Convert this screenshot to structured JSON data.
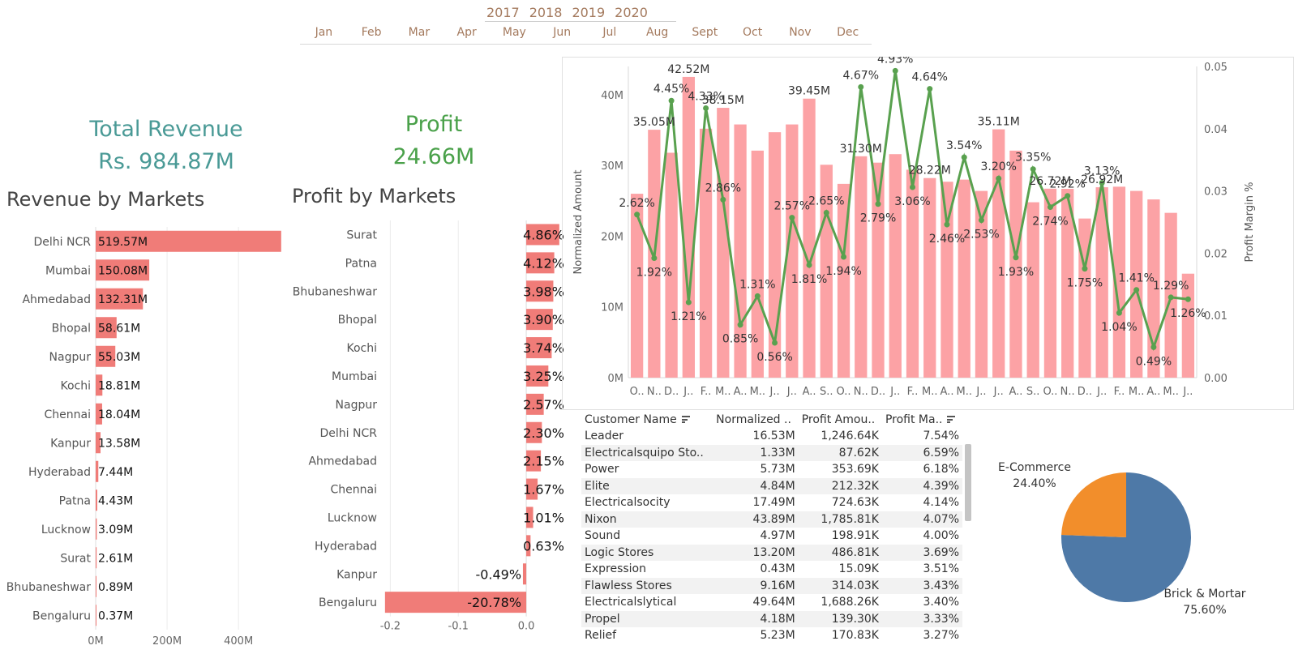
{
  "filters": {
    "years": [
      "2017",
      "2018",
      "2019",
      "2020"
    ],
    "months": [
      "Jan",
      "Feb",
      "Mar",
      "Apr",
      "May",
      "Jun",
      "Jul",
      "Aug",
      "Sept",
      "Oct",
      "Nov",
      "Dec"
    ]
  },
  "kpis": {
    "revenue_title": "Total Revenue",
    "revenue_value": "Rs. 984.87M",
    "profit_title": "Profit",
    "profit_value": "24.66M"
  },
  "colors": {
    "revenue_bar": "#f07c78",
    "profit_bar": "#f07c78",
    "combo_bar": "#fca2a5",
    "combo_line": "#59a14f",
    "pie_brick": "#4e79a7",
    "pie_ecom": "#f28e2b",
    "kpi_revenue": "#4a9a96",
    "kpi_profit": "#4aa14a"
  },
  "chart_data": [
    {
      "id": "revenue_by_markets",
      "type": "bar",
      "orientation": "horizontal",
      "title": "Revenue by Markets",
      "categories": [
        "Delhi NCR",
        "Mumbai",
        "Ahmedabad",
        "Bhopal",
        "Nagpur",
        "Kochi",
        "Chennai",
        "Kanpur",
        "Hyderabad",
        "Patna",
        "Lucknow",
        "Surat",
        "Bhubaneshwar",
        "Bengaluru"
      ],
      "values": [
        519.57,
        150.08,
        132.31,
        58.61,
        55.03,
        18.81,
        18.04,
        13.58,
        7.44,
        4.43,
        3.09,
        2.61,
        0.89,
        0.37
      ],
      "labels": [
        "519.57M",
        "150.08M",
        "132.31M",
        "58.61M",
        "55.03M",
        "18.81M",
        "18.04M",
        "13.58M",
        "7.44M",
        "4.43M",
        "3.09M",
        "2.61M",
        "0.89M",
        "0.37M"
      ],
      "x_ticks": [
        "0M",
        "200M",
        "400M"
      ],
      "xlim": [
        0,
        520
      ]
    },
    {
      "id": "profit_by_markets",
      "type": "bar",
      "orientation": "horizontal",
      "title": "Profit by Markets",
      "categories": [
        "Surat",
        "Patna",
        "Bhubaneshwar",
        "Bhopal",
        "Kochi",
        "Mumbai",
        "Nagpur",
        "Delhi NCR",
        "Ahmedabad",
        "Chennai",
        "Lucknow",
        "Hyderabad",
        "Kanpur",
        "Bengaluru"
      ],
      "values": [
        0.0486,
        0.0412,
        0.0398,
        0.039,
        0.0374,
        0.0325,
        0.0257,
        0.023,
        0.0215,
        0.0167,
        0.0101,
        0.0063,
        -0.0049,
        -0.2078
      ],
      "labels": [
        "4.86%",
        "4.12%",
        "3.98%",
        "3.90%",
        "3.74%",
        "3.25%",
        "2.57%",
        "2.30%",
        "2.15%",
        "1.67%",
        "1.01%",
        "0.63%",
        "-0.49%",
        "-20.78%"
      ],
      "x_ticks": [
        "-0.2",
        "-0.1",
        "0.0"
      ],
      "xlim": [
        -0.21,
        0.05
      ]
    },
    {
      "id": "monthly_combo",
      "type": "bar",
      "title": "",
      "ylabel": "Normalized Amount",
      "y2label": "Profit Margin %",
      "y_ticks": [
        "0M",
        "10M",
        "20M",
        "30M",
        "40M"
      ],
      "y2_ticks": [
        "0.00",
        "0.01",
        "0.02",
        "0.03",
        "0.04",
        "0.05"
      ],
      "ylim": [
        0,
        44
      ],
      "y2lim": [
        0,
        0.05
      ],
      "x_ticks": [
        "O..",
        "N..",
        "D..",
        "J..",
        "F..",
        "M..",
        "A..",
        "M..",
        "J..",
        "J..",
        "A..",
        "S..",
        "O..",
        "N..",
        "D..",
        "J..",
        "F..",
        "M..",
        "A..",
        "M..",
        "J..",
        "J..",
        "A..",
        "S..",
        "O..",
        "N..",
        "D..",
        "J..",
        "F..",
        "M..",
        "A..",
        "M..",
        "J.."
      ],
      "bars": [
        26.0,
        35.05,
        31.8,
        42.52,
        35.2,
        38.15,
        35.8,
        32.1,
        34.7,
        35.8,
        39.45,
        30.1,
        27.4,
        31.3,
        30.4,
        31.6,
        29.4,
        28.22,
        27.7,
        28.0,
        26.4,
        35.11,
        32.1,
        24.8,
        26.72,
        26.7,
        22.5,
        26.92,
        27.0,
        26.4,
        25.2,
        23.3,
        14.7
      ],
      "bar_labels": [
        "",
        "35.05M",
        "",
        "42.52M",
        "",
        "38.15M",
        "",
        "",
        "",
        "",
        "39.45M",
        "",
        "",
        "31.30M",
        "",
        "",
        "",
        "28.22M",
        "",
        "",
        "",
        "35.11M",
        "",
        "",
        "26.72M",
        "",
        "",
        "26.92M",
        "",
        "",
        "",
        "",
        ""
      ],
      "line": [
        0.0262,
        0.0192,
        0.0445,
        0.0121,
        0.0433,
        0.0286,
        0.0085,
        0.0131,
        0.0056,
        0.0257,
        0.0181,
        0.0265,
        0.0194,
        0.0467,
        0.0279,
        0.0493,
        0.0306,
        0.0464,
        0.0246,
        0.0354,
        0.0253,
        0.032,
        0.0193,
        0.0335,
        0.0274,
        0.0292,
        0.0175,
        0.0313,
        0.0104,
        0.0141,
        0.0049,
        0.0129,
        0.0126
      ],
      "line_labels": [
        "2.62%",
        "1.92%",
        "4.45%",
        "1.21%",
        "4.33%",
        "2.86%",
        "0.85%",
        "1.31%",
        "0.56%",
        "2.57%",
        "1.81%",
        "2.65%",
        "1.94%",
        "4.67%",
        "2.79%",
        "4.93%",
        "3.06%",
        "4.64%",
        "2.46%",
        "3.54%",
        "2.53%",
        "3.20%",
        "1.93%",
        "3.35%",
        "2.74%",
        "2.92%",
        "1.75%",
        "3.13%",
        "1.04%",
        "1.41%",
        "0.49%",
        "1.29%",
        "1.26%"
      ]
    },
    {
      "id": "channel_pie",
      "type": "pie",
      "title": "",
      "slices": [
        {
          "name": "Brick & Mortar",
          "value": 0.756,
          "label": "75.60%"
        },
        {
          "name": "E-Commerce",
          "value": 0.244,
          "label": "24.40%"
        }
      ]
    }
  ],
  "table": {
    "headers": [
      "Customer Name",
      "Normalized ..",
      "Profit Amou..",
      "Profit Ma.."
    ],
    "rows": [
      [
        "Leader",
        "16.53M",
        "1,246.64K",
        "7.54%"
      ],
      [
        "Electricalsquipo Sto..",
        "1.33M",
        "87.62K",
        "6.59%"
      ],
      [
        "Power",
        "5.73M",
        "353.69K",
        "6.18%"
      ],
      [
        "Elite",
        "4.84M",
        "212.32K",
        "4.39%"
      ],
      [
        "Electricalsocity",
        "17.49M",
        "724.63K",
        "4.14%"
      ],
      [
        "Nixon",
        "43.89M",
        "1,785.81K",
        "4.07%"
      ],
      [
        "Sound",
        "4.97M",
        "198.91K",
        "4.00%"
      ],
      [
        "Logic Stores",
        "13.20M",
        "486.81K",
        "3.69%"
      ],
      [
        "Expression",
        "0.43M",
        "15.09K",
        "3.51%"
      ],
      [
        "Flawless Stores",
        "9.16M",
        "314.03K",
        "3.43%"
      ],
      [
        "Electricalslytical",
        "49.64M",
        "1,688.26K",
        "3.40%"
      ],
      [
        "Propel",
        "4.18M",
        "139.30K",
        "3.33%"
      ],
      [
        "Relief",
        "5.23M",
        "170.83K",
        "3.27%"
      ]
    ]
  }
}
